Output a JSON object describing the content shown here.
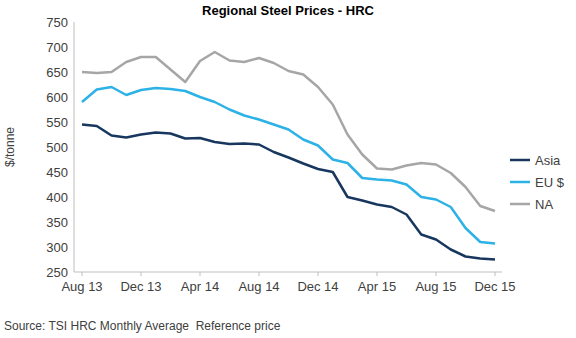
{
  "chart_data": {
    "type": "line",
    "title": "Regional Steel Prices - HRC",
    "y_label": "$/tonne",
    "annotations": [
      "Source: TSI HRC Monthly Average  Reference price"
    ],
    "categories": [
      "Aug 13",
      null,
      null,
      null,
      "Dec 13",
      null,
      null,
      null,
      "Apr 14",
      null,
      null,
      null,
      "Aug 14",
      null,
      null,
      null,
      "Dec 14",
      null,
      null,
      null,
      "Apr 15",
      null,
      null,
      null,
      "Aug 15",
      null,
      null,
      null,
      "Dec 15"
    ],
    "series": [
      {
        "name": "Asia",
        "color": "#17375e",
        "values": [
          545,
          542,
          523,
          519,
          525,
          529,
          527,
          517,
          518,
          510,
          506,
          507,
          505,
          490,
          479,
          467,
          456,
          450,
          400,
          393,
          385,
          380,
          365,
          325,
          315,
          295,
          281,
          277,
          275
        ]
      },
      {
        "name": "EU $",
        "color": "#2cb2e6",
        "values": [
          590,
          615,
          620,
          604,
          614,
          618,
          616,
          612,
          600,
          590,
          575,
          563,
          555,
          545,
          535,
          515,
          503,
          475,
          468,
          438,
          435,
          433,
          425,
          400,
          395,
          380,
          338,
          310,
          307
        ]
      },
      {
        "name": "NA",
        "color": "#a6a6a6",
        "values": [
          650,
          648,
          650,
          670,
          680,
          680,
          655,
          630,
          672,
          690,
          673,
          670,
          678,
          668,
          652,
          645,
          620,
          585,
          525,
          485,
          457,
          455,
          463,
          468,
          465,
          448,
          420,
          382,
          372
        ]
      }
    ],
    "ylim": [
      250,
      750
    ],
    "yticks": [
      250,
      300,
      350,
      400,
      450,
      500,
      550,
      600,
      650,
      700,
      750
    ],
    "grid": false,
    "legend": "right"
  }
}
